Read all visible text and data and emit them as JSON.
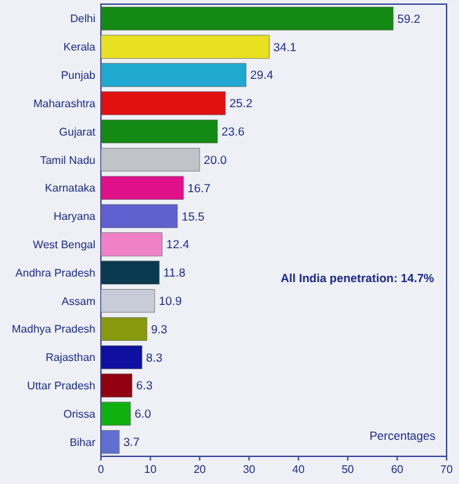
{
  "chart_data": {
    "type": "bar",
    "orientation": "horizontal",
    "xlabel": "Percentages",
    "annotations": [
      "All India penetration: 14.7%"
    ],
    "categories": [
      "Delhi",
      "Kerala",
      "Punjab",
      "Maharashtra",
      "Gujarat",
      "Tamil Nadu",
      "Karnataka",
      "Haryana",
      "West Bengal",
      "Andhra Pradesh",
      "Assam",
      "Madhya Pradesh",
      "Rajasthan",
      "Uttar Pradesh",
      "Orissa",
      "Bihar"
    ],
    "values": [
      59.2,
      34.1,
      29.4,
      25.2,
      23.6,
      20.0,
      16.7,
      15.5,
      12.4,
      11.8,
      10.9,
      9.3,
      8.3,
      6.3,
      6.0,
      3.7
    ],
    "value_labels": [
      "59.2",
      "34.1",
      "29.4",
      "25.2",
      "23.6",
      "20.0",
      "16.7",
      "15.5",
      "12.4",
      "11.8",
      "10.9",
      "9.3",
      "8.3",
      "6.3",
      "6.0",
      "3.7"
    ],
    "colors": [
      "#138a13",
      "#e8e020",
      "#1fa8d0",
      "#e01010",
      "#138a13",
      "#c0c4c8",
      "#e0108a",
      "#6060d0",
      "#f080c8",
      "#0a3a50",
      "#c8ccd8",
      "#8a9a10",
      "#1010a0",
      "#900010",
      "#10b010",
      "#6070d0"
    ],
    "xlim": [
      0,
      70
    ],
    "xticks": [
      0,
      10,
      20,
      30,
      40,
      50,
      60,
      70
    ]
  }
}
